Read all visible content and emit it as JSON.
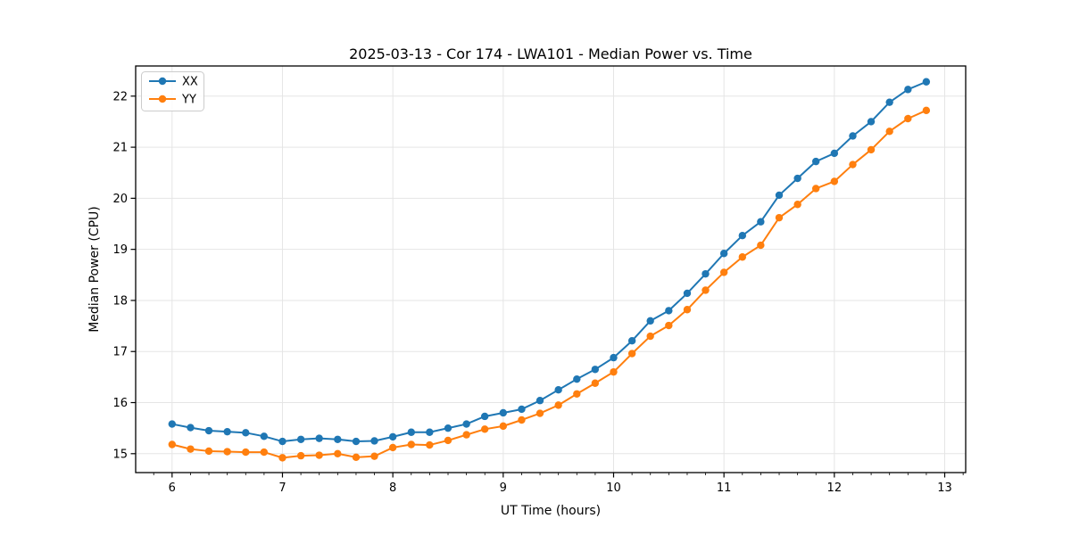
{
  "figure": {
    "background": "#ffffff",
    "spine_color": "#000000",
    "grid_color": "#e5e5e5",
    "legend_border_color": "#cccccc"
  },
  "chart_data": {
    "type": "line",
    "title": "2025-03-13 - Cor 174 - LWA101 - Median Power vs. Time",
    "xlabel": "UT Time (hours)",
    "ylabel": "Median Power (CPU)",
    "xlim": [
      5.67,
      13.19
    ],
    "ylim": [
      14.63,
      22.59
    ],
    "xticks": [
      6,
      7,
      8,
      9,
      10,
      11,
      12,
      13
    ],
    "yticks": [
      15,
      16,
      17,
      18,
      19,
      20,
      21,
      22
    ],
    "x_minor_step": 0.16667,
    "grid": true,
    "legend_position": "upper-left",
    "x": [
      6.0,
      6.167,
      6.333,
      6.5,
      6.667,
      6.833,
      7.0,
      7.167,
      7.333,
      7.5,
      7.667,
      7.833,
      8.0,
      8.167,
      8.333,
      8.5,
      8.667,
      8.833,
      9.0,
      9.167,
      9.333,
      9.5,
      9.667,
      9.833,
      10.0,
      10.167,
      10.333,
      10.5,
      10.667,
      10.833,
      11.0,
      11.167,
      11.333,
      11.5,
      11.667,
      11.833,
      12.0,
      12.167,
      12.333,
      12.5,
      12.667,
      12.833
    ],
    "series": [
      {
        "name": "XX",
        "color": "#1f77b4",
        "values": [
          15.58,
          15.51,
          15.45,
          15.43,
          15.41,
          15.34,
          15.24,
          15.28,
          15.3,
          15.28,
          15.24,
          15.25,
          15.33,
          15.42,
          15.42,
          15.5,
          15.58,
          15.73,
          15.8,
          15.87,
          16.04,
          16.25,
          16.46,
          16.65,
          16.88,
          17.21,
          17.6,
          17.8,
          18.14,
          18.52,
          18.92,
          19.27,
          19.54,
          20.06,
          20.39,
          20.72,
          20.88,
          21.22,
          21.5,
          21.88,
          22.13,
          22.28
        ]
      },
      {
        "name": "YY",
        "color": "#ff7f0e",
        "values": [
          15.18,
          15.09,
          15.05,
          15.04,
          15.03,
          15.03,
          14.92,
          14.96,
          14.97,
          15.0,
          14.93,
          14.95,
          15.12,
          15.18,
          15.17,
          15.26,
          15.37,
          15.48,
          15.54,
          15.66,
          15.79,
          15.95,
          16.17,
          16.38,
          16.6,
          16.96,
          17.3,
          17.51,
          17.82,
          18.2,
          18.55,
          18.85,
          19.08,
          19.62,
          19.88,
          20.19,
          20.33,
          20.66,
          20.95,
          21.31,
          21.56,
          21.72
        ]
      }
    ]
  }
}
